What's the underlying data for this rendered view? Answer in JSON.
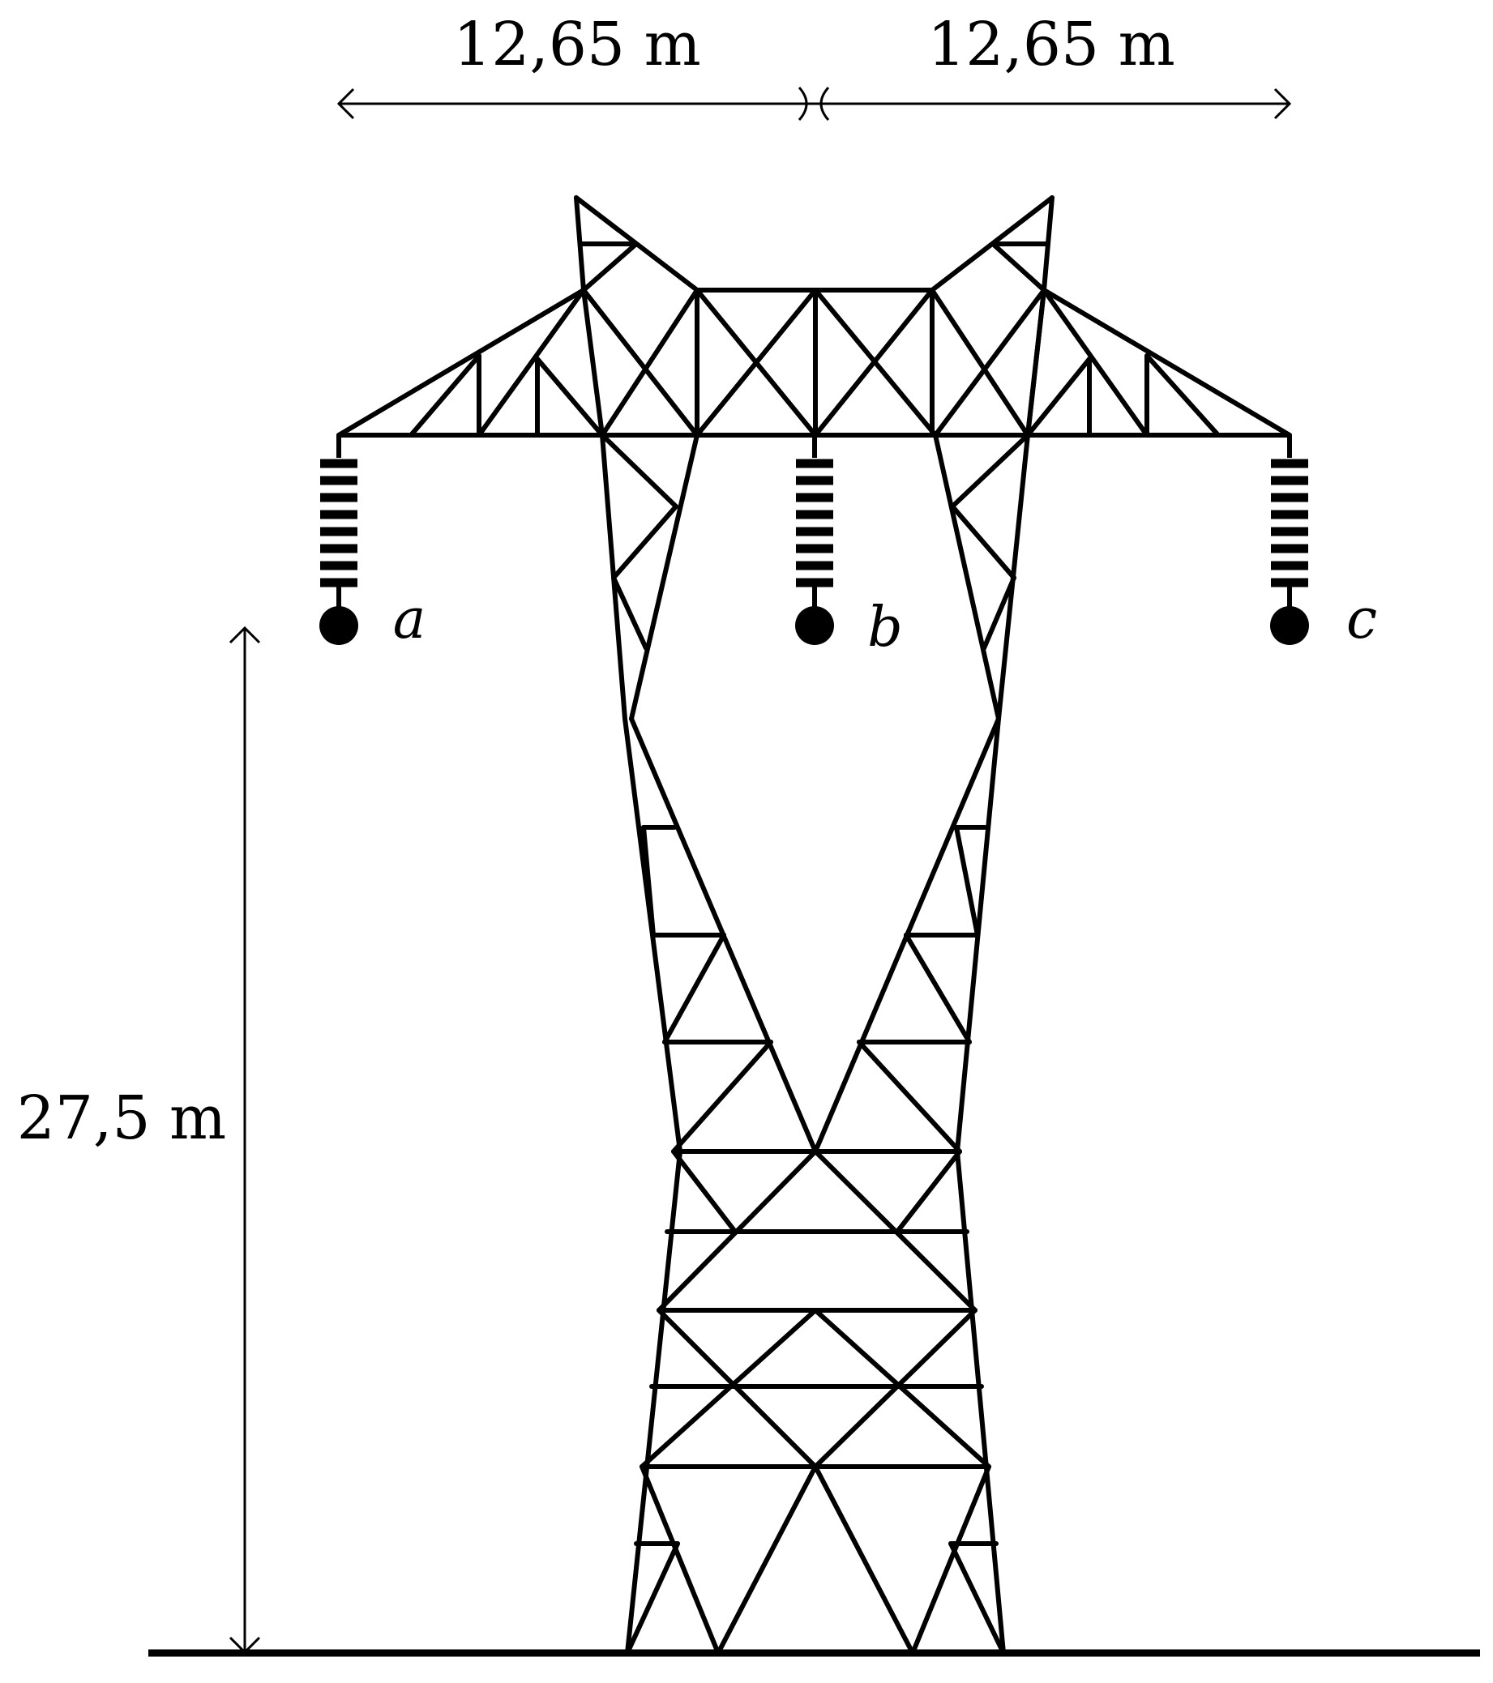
{
  "dimensions": {
    "spacing_left": "12,65 m",
    "spacing_right": "12,65 m",
    "conductor_height": "27,5 m"
  },
  "phases": [
    "a",
    "b",
    "c"
  ],
  "colors": {
    "stroke": "#000000",
    "background": "#ffffff"
  }
}
